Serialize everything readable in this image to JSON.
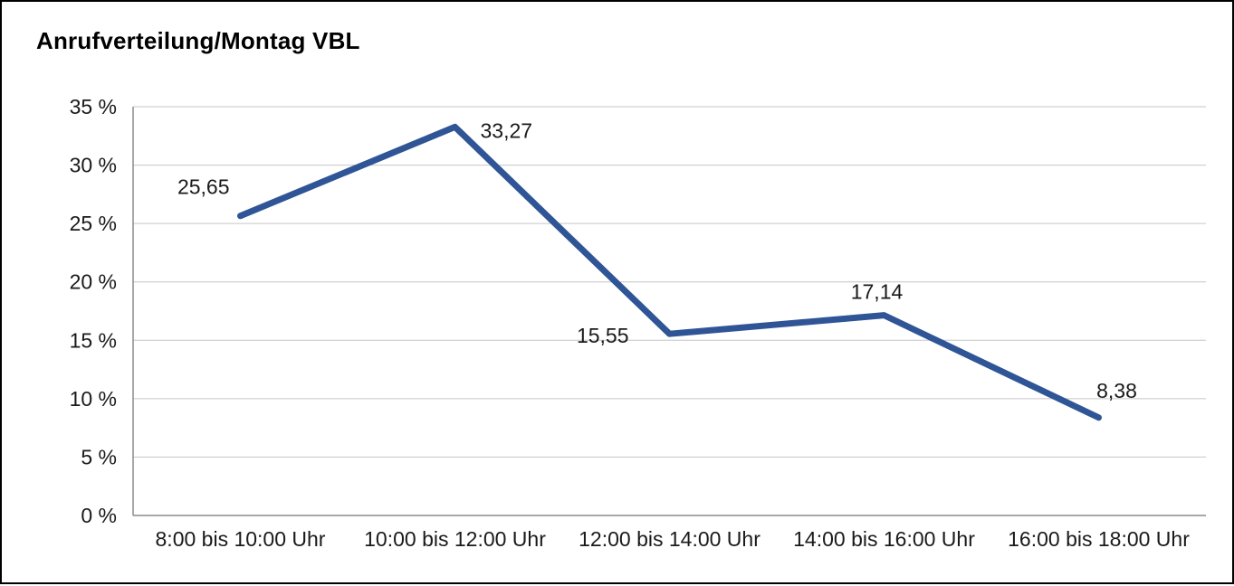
{
  "chart_data": {
    "type": "line",
    "title": "Anrufverteilung/Montag VBL",
    "categories": [
      "8:00 bis 10:00 Uhr",
      "10:00 bis 12:00 Uhr",
      "12:00 bis 14:00 Uhr",
      "14:00 bis 16:00 Uhr",
      "16:00 bis 18:00 Uhr"
    ],
    "values": [
      25.65,
      33.27,
      15.55,
      17.14,
      8.38
    ],
    "point_labels": [
      "25,65",
      "33,27",
      "15,55",
      "17,14",
      "8,38"
    ],
    "title_visible": true,
    "xlabel": "",
    "ylabel": "",
    "ylim": [
      0,
      35
    ],
    "ytick_step": 5,
    "ytick_suffix": " %",
    "grid": true,
    "legend": "none",
    "line_color": "#2f5597",
    "gridline_color": "#c6c6c6",
    "axis_color": "#8c8c8c",
    "label_color": "#1a1a1a"
  }
}
